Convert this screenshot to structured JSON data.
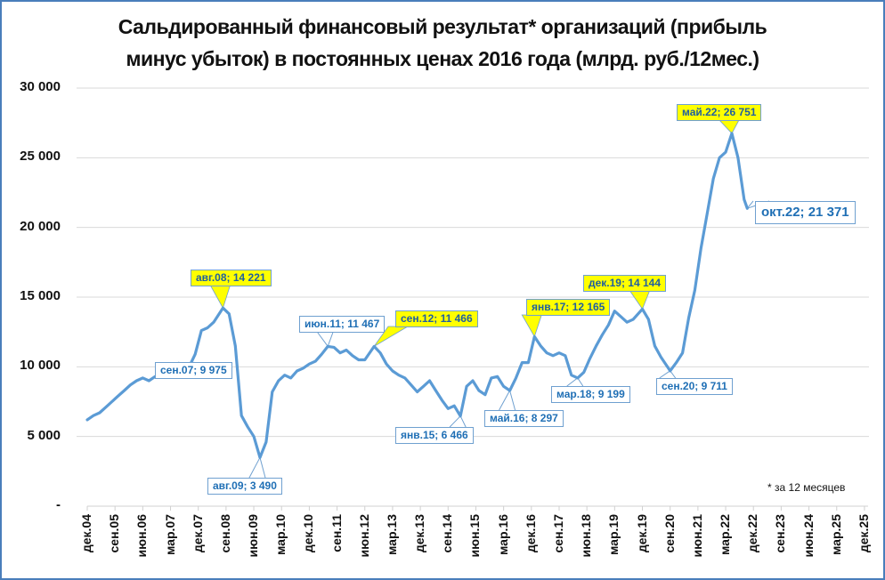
{
  "title_lines": [
    "Сальдированный финансовый результат* организаций (прибыль",
    "минус убыток) в постоянных ценах 2016 года (млрд. руб./12мес.)"
  ],
  "footnote": "* за 12 месяцев",
  "colors": {
    "line": "#5b9bd5",
    "frame": "#4a7ebb",
    "highlight": "#ffff00",
    "label_text": "#1f6fb5",
    "grid": "#d9d9d9"
  },
  "chart_data": {
    "type": "line",
    "title": "Сальдированный финансовый результат* организаций (прибыль минус убыток) в постоянных ценах 2016 года (млрд. руб./12мес.)",
    "xlabel": "",
    "ylabel": "",
    "ylim": [
      0,
      30000
    ],
    "yticks": [
      0,
      5000,
      10000,
      15000,
      20000,
      25000,
      30000
    ],
    "ytick_labels": [
      "-",
      "5 000",
      "10 000",
      "15 000",
      "20 000",
      "25 000",
      "30 000"
    ],
    "xtick_labels": [
      "дек.04",
      "сен.05",
      "июн.06",
      "мар.07",
      "дек.07",
      "сен.08",
      "июн.09",
      "мар.10",
      "дек.10",
      "сен.11",
      "июн.12",
      "мар.13",
      "дек.13",
      "сен.14",
      "июн.15",
      "мар.16",
      "дек.16",
      "сен.17",
      "июн.18",
      "мар.19",
      "дек.19",
      "сен.20",
      "июн.21",
      "мар.22",
      "дек.22",
      "сен.23",
      "июн.24",
      "мар.25",
      "дек.25"
    ],
    "grid": true,
    "legend": null,
    "x_unit": "months since дек.04",
    "series": [
      {
        "name": "Сальдированный финансовый результат",
        "x": [
          0,
          2,
          4,
          6,
          8,
          10,
          12,
          14,
          16,
          18,
          20,
          22,
          24,
          26,
          28,
          30,
          33,
          35,
          37,
          39,
          41,
          44,
          46,
          48,
          50,
          52,
          54,
          56,
          58,
          60,
          62,
          64,
          66,
          68,
          70,
          72,
          74,
          76,
          78,
          80,
          82,
          84,
          86,
          88,
          90,
          93,
          95,
          97,
          99,
          101,
          103,
          105,
          107,
          109,
          111,
          113,
          115,
          117,
          119,
          121,
          123,
          125,
          127,
          129,
          131,
          133,
          135,
          137,
          139,
          141,
          143,
          145,
          147,
          149,
          151,
          153,
          155,
          157,
          159,
          161,
          163,
          165,
          167,
          169,
          171,
          173,
          175,
          177,
          180,
          182,
          184,
          186,
          189,
          191,
          193,
          195,
          197,
          199,
          201,
          203,
          205,
          207,
          209,
          211,
          213,
          214
        ],
        "values": [
          6200,
          6500,
          6700,
          7100,
          7500,
          7900,
          8300,
          8700,
          9000,
          9200,
          9000,
          9300,
          9500,
          9800,
          9950,
          9900,
          9975,
          10900,
          12600,
          12800,
          13200,
          14221,
          13800,
          11500,
          6500,
          5700,
          5000,
          3490,
          4600,
          8200,
          9000,
          9400,
          9200,
          9700,
          9900,
          10200,
          10400,
          10900,
          11467,
          11400,
          11000,
          11200,
          10800,
          10500,
          10500,
          11466,
          11000,
          10200,
          9700,
          9400,
          9200,
          8700,
          8200,
          8600,
          9000,
          8300,
          7600,
          7000,
          7200,
          6466,
          8600,
          9000,
          8300,
          8000,
          9200,
          9300,
          8600,
          8297,
          9200,
          10300,
          10300,
          12165,
          11500,
          11000,
          10800,
          11000,
          10800,
          9400,
          9199,
          9600,
          10600,
          11500,
          12300,
          13000,
          14000,
          13600,
          13200,
          13400,
          14144,
          13400,
          11500,
          10700,
          9711,
          10300,
          11000,
          13500,
          15500,
          18500,
          21000,
          23500,
          25000,
          25400,
          26751,
          25000,
          22000,
          21371
        ]
      }
    ],
    "annotations": [
      {
        "text": "сен.07;  9 975",
        "month": 33,
        "value": 9975,
        "highlight": false
      },
      {
        "text": "авг.08;  14 221",
        "month": 44,
        "value": 14221,
        "highlight": true
      },
      {
        "text": "авг.09;  3 490",
        "month": 56,
        "value": 3490,
        "highlight": false
      },
      {
        "text": "июн.11;  11 467",
        "month": 78,
        "value": 11467,
        "highlight": false
      },
      {
        "text": "сен.12;  11 466",
        "month": 93,
        "value": 11466,
        "highlight": true
      },
      {
        "text": "янв.15;  6 466",
        "month": 121,
        "value": 6466,
        "highlight": false
      },
      {
        "text": "май.16;  8 297",
        "month": 137,
        "value": 8297,
        "highlight": false
      },
      {
        "text": "янв.17;  12 165",
        "month": 145,
        "value": 12165,
        "highlight": true
      },
      {
        "text": "мар.18;  9 199",
        "month": 159,
        "value": 9199,
        "highlight": false
      },
      {
        "text": "дек.19;  14 144",
        "month": 180,
        "value": 14144,
        "highlight": true
      },
      {
        "text": "сен.20;  9 711",
        "month": 189,
        "value": 9711,
        "highlight": false
      },
      {
        "text": "май.22;  26 751",
        "month": 209,
        "value": 26751,
        "highlight": true
      },
      {
        "text": "окт.22;  21 371",
        "month": 214,
        "value": 21371,
        "highlight": false
      }
    ]
  }
}
